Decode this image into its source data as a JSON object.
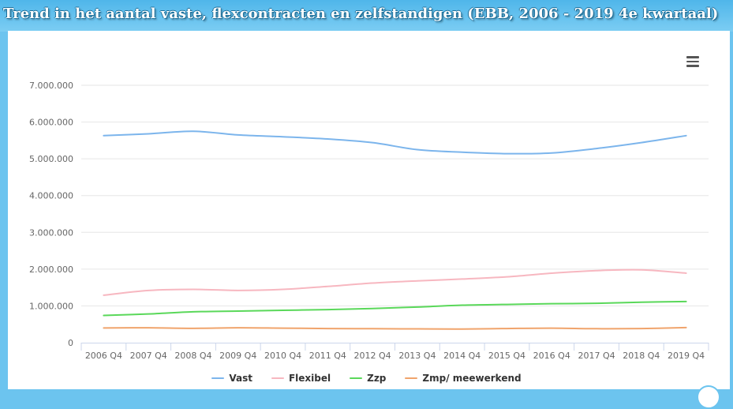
{
  "chart_data": {
    "type": "line",
    "title": "Trend in het aantal vaste, flexcontracten en zelfstandigen (EBB, 2006 - 2019 4e kwartaal)",
    "categories": [
      "2006 Q4",
      "2007 Q4",
      "2008 Q4",
      "2009 Q4",
      "2010 Q4",
      "2011 Q4",
      "2012 Q4",
      "2013 Q4",
      "2014 Q4",
      "2015 Q4",
      "2016 Q4",
      "2017 Q4",
      "2018 Q4",
      "2019 Q4"
    ],
    "y_ticks": [
      {
        "value": 0,
        "label": "0"
      },
      {
        "value": 1000000,
        "label": "1.000.000"
      },
      {
        "value": 2000000,
        "label": "2.000.000"
      },
      {
        "value": 3000000,
        "label": "3.000.000"
      },
      {
        "value": 4000000,
        "label": "4.000.000"
      },
      {
        "value": 5000000,
        "label": "5.000.000"
      },
      {
        "value": 6000000,
        "label": "6.000.000"
      },
      {
        "value": 7000000,
        "label": "7.000.000"
      }
    ],
    "ylim": [
      0,
      7000000
    ],
    "grid": true,
    "legend_position": "bottom-center",
    "series": [
      {
        "name": "Vast",
        "color": "#7cb5ec",
        "values": [
          5630000,
          5680000,
          5750000,
          5650000,
          5600000,
          5540000,
          5440000,
          5250000,
          5180000,
          5140000,
          5160000,
          5280000,
          5440000,
          5630000
        ]
      },
      {
        "name": "Flexibel",
        "color": "#f7b7c0",
        "values": [
          1290000,
          1420000,
          1450000,
          1420000,
          1450000,
          1530000,
          1620000,
          1680000,
          1730000,
          1790000,
          1890000,
          1960000,
          1980000,
          1890000
        ]
      },
      {
        "name": "Zzp",
        "color": "#5ad85a",
        "values": [
          740000,
          780000,
          840000,
          860000,
          880000,
          900000,
          930000,
          970000,
          1020000,
          1040000,
          1060000,
          1070000,
          1100000,
          1120000
        ]
      },
      {
        "name": "Zmp/ meewerkend",
        "color": "#f0a46c",
        "values": [
          400000,
          405000,
          390000,
          405000,
          395000,
          385000,
          380000,
          375000,
          370000,
          385000,
          395000,
          380000,
          385000,
          410000
        ]
      }
    ]
  }
}
